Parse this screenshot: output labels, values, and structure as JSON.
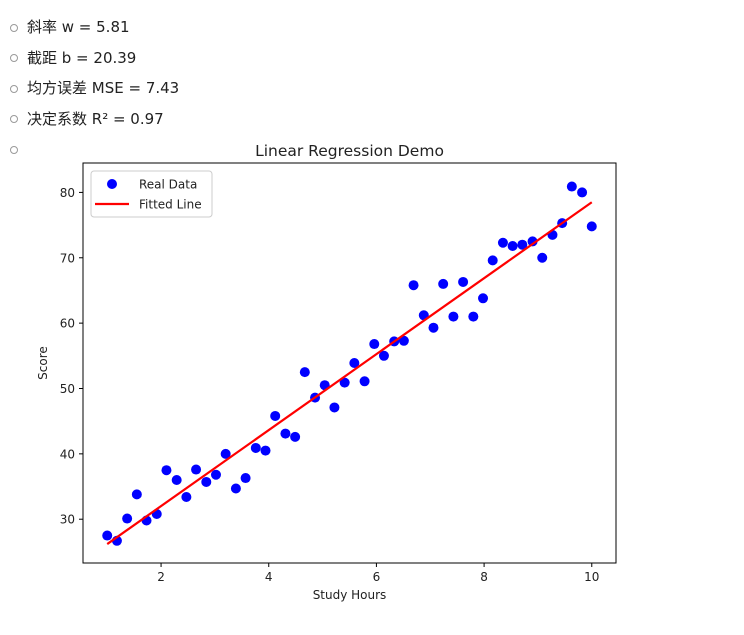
{
  "bullets": [
    "斜率 w = 5.81",
    "截距 b = 20.39",
    "均方误差 MSE = 7.43",
    "决定系数 R² = 0.97",
    ""
  ],
  "chart_data": {
    "type": "scatter",
    "title": "Linear Regression Demo",
    "xlabel": "Study Hours",
    "ylabel": "Score",
    "xlim": [
      0.55,
      10.45
    ],
    "ylim": [
      23.3,
      84.5
    ],
    "xticks": [
      2,
      4,
      6,
      8,
      10
    ],
    "yticks": [
      30,
      40,
      50,
      60,
      70,
      80
    ],
    "grid": false,
    "legend_position": "upper-left",
    "series": [
      {
        "name": "Real Data",
        "color": "#0000ff",
        "x": [
          1.0,
          1.18,
          1.37,
          1.55,
          1.73,
          1.92,
          2.1,
          2.29,
          2.47,
          2.65,
          2.84,
          3.02,
          3.2,
          3.39,
          3.57,
          3.76,
          3.94,
          4.12,
          4.31,
          4.49,
          4.67,
          4.86,
          5.04,
          5.22,
          5.41,
          5.59,
          5.78,
          5.96,
          6.14,
          6.33,
          6.51,
          6.69,
          6.88,
          7.06,
          7.24,
          7.43,
          7.61,
          7.8,
          7.98,
          8.16,
          8.35,
          8.53,
          8.71,
          8.9,
          9.08,
          9.27,
          9.45,
          9.63,
          9.82,
          10.0
        ],
        "y": [
          27.5,
          26.7,
          30.1,
          33.8,
          29.8,
          30.8,
          37.5,
          36.0,
          33.4,
          37.6,
          35.7,
          36.8,
          40.0,
          34.7,
          36.3,
          40.9,
          40.5,
          45.8,
          43.1,
          42.6,
          52.5,
          48.6,
          50.5,
          47.1,
          50.9,
          53.9,
          51.1,
          56.8,
          55.0,
          57.2,
          57.3,
          65.8,
          61.2,
          59.3,
          66.0,
          61.0,
          66.3,
          61.0,
          63.8,
          69.6,
          72.3,
          71.8,
          72.0,
          72.5,
          70.0,
          73.5,
          75.3,
          80.9,
          80.0,
          74.8
        ]
      },
      {
        "name": "Fitted Line",
        "color": "#ff0000",
        "type": "line",
        "x": [
          1.0,
          10.0
        ],
        "y": [
          26.2,
          78.5
        ]
      }
    ]
  }
}
